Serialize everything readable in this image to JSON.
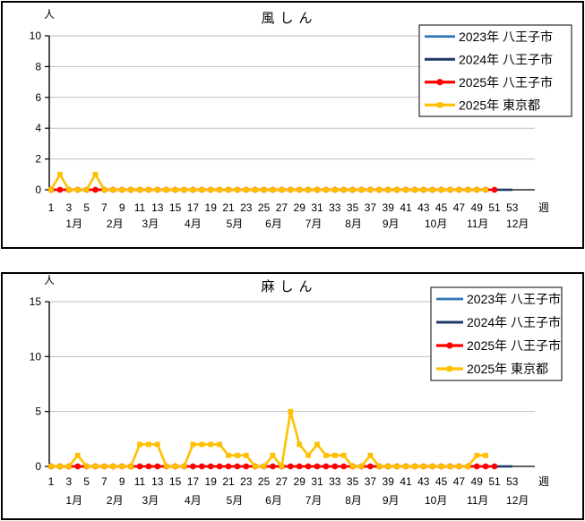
{
  "panels": [
    {
      "title": "風しん",
      "y_axis_label": "人",
      "x_axis_label": "週",
      "chart_data": {
        "type": "line",
        "title": "風しん",
        "ylabel": "人",
        "xlabel": "週",
        "ylim": [
          0,
          10
        ],
        "yticks": [
          0,
          2,
          4,
          6,
          8,
          10
        ],
        "x_ticks": [
          1,
          3,
          5,
          7,
          9,
          11,
          13,
          15,
          17,
          19,
          21,
          23,
          25,
          27,
          29,
          31,
          33,
          35,
          37,
          39,
          41,
          43,
          45,
          47,
          49,
          51,
          53
        ],
        "grid": true,
        "legend_position": "top-right",
        "months": [
          {
            "label": "1月",
            "week": 3.6
          },
          {
            "label": "2月",
            "week": 8.2
          },
          {
            "label": "3月",
            "week": 12.2
          },
          {
            "label": "4月",
            "week": 17.0
          },
          {
            "label": "5月",
            "week": 21.7
          },
          {
            "label": "6月",
            "week": 26.1
          },
          {
            "label": "7月",
            "week": 30.6
          },
          {
            "label": "8月",
            "week": 35.1
          },
          {
            "label": "9月",
            "week": 39.3
          },
          {
            "label": "10月",
            "week": 44.4
          },
          {
            "label": "11月",
            "week": 49.1
          },
          {
            "label": "12月",
            "week": 53.6
          }
        ],
        "series": [
          {
            "name": "2023年  八王子市",
            "color": "#2E75B6",
            "marker": "none",
            "values": [
              0,
              0,
              0,
              0,
              0,
              0,
              0,
              0,
              0,
              0,
              0,
              0,
              0,
              0,
              0,
              0,
              0,
              0,
              0,
              0,
              0,
              0,
              0,
              0,
              0,
              0,
              0,
              0,
              0,
              0,
              0,
              0,
              0,
              0,
              0,
              0,
              0,
              0,
              0,
              0,
              0,
              0,
              0,
              0,
              0,
              0,
              0,
              0,
              0,
              0,
              0,
              0,
              0
            ]
          },
          {
            "name": "2024年  八王子市",
            "color": "#1F3864",
            "marker": "none",
            "values": [
              0,
              0,
              0,
              0,
              0,
              0,
              0,
              0,
              0,
              0,
              0,
              0,
              0,
              0,
              0,
              0,
              0,
              0,
              0,
              0,
              0,
              0,
              0,
              0,
              0,
              0,
              0,
              0,
              0,
              0,
              0,
              0,
              0,
              0,
              0,
              0,
              0,
              0,
              0,
              0,
              0,
              0,
              0,
              0,
              0,
              0,
              0,
              0,
              0,
              0,
              0,
              0,
              0
            ]
          },
          {
            "name": "2025年  八王子市",
            "color": "#FF0000",
            "marker": "circle",
            "values": [
              0,
              0,
              0,
              0,
              0,
              0,
              0,
              0,
              0,
              0,
              0,
              0,
              0,
              0,
              0,
              0,
              0,
              0,
              0,
              0,
              0,
              0,
              0,
              0,
              0,
              0,
              0,
              0,
              0,
              0,
              0,
              0,
              0,
              0,
              0,
              0,
              0,
              0,
              0,
              0,
              0,
              0,
              0,
              0,
              0,
              0,
              0,
              0,
              0,
              0,
              0
            ]
          },
          {
            "name": "2025年  東京都",
            "color": "#FFC000",
            "marker": "square",
            "values": [
              0,
              1,
              0,
              0,
              0,
              1,
              0,
              0,
              0,
              0,
              0,
              0,
              0,
              0,
              0,
              0,
              0,
              0,
              0,
              0,
              0,
              0,
              0,
              0,
              0,
              0,
              0,
              0,
              0,
              0,
              0,
              0,
              0,
              0,
              0,
              0,
              0,
              0,
              0,
              0,
              0,
              0,
              0,
              0,
              0,
              0,
              0,
              0,
              0,
              0
            ]
          }
        ]
      }
    },
    {
      "title": "麻しん",
      "y_axis_label": "人",
      "x_axis_label": "週",
      "chart_data": {
        "type": "line",
        "title": "麻しん",
        "ylabel": "人",
        "xlabel": "週",
        "ylim": [
          0,
          15
        ],
        "yticks": [
          0,
          5,
          10,
          15
        ],
        "x_ticks": [
          1,
          3,
          5,
          7,
          9,
          11,
          13,
          15,
          17,
          19,
          21,
          23,
          25,
          27,
          29,
          31,
          33,
          35,
          37,
          39,
          41,
          43,
          45,
          47,
          49,
          51,
          53
        ],
        "grid": true,
        "legend_position": "top-right",
        "months": [
          {
            "label": "1月",
            "week": 3.6
          },
          {
            "label": "2月",
            "week": 8.2
          },
          {
            "label": "3月",
            "week": 12.2
          },
          {
            "label": "4月",
            "week": 17.0
          },
          {
            "label": "5月",
            "week": 21.7
          },
          {
            "label": "6月",
            "week": 26.1
          },
          {
            "label": "7月",
            "week": 30.6
          },
          {
            "label": "8月",
            "week": 35.1
          },
          {
            "label": "9月",
            "week": 39.3
          },
          {
            "label": "10月",
            "week": 44.4
          },
          {
            "label": "11月",
            "week": 49.1
          },
          {
            "label": "12月",
            "week": 53.6
          }
        ],
        "series": [
          {
            "name": "2023年  八王子市",
            "color": "#2E75B6",
            "marker": "none",
            "values": [
              0,
              0,
              0,
              0,
              0,
              0,
              0,
              0,
              0,
              0,
              0,
              0,
              0,
              0,
              0,
              0,
              0,
              0,
              0,
              0,
              0,
              0,
              0,
              0,
              0,
              0,
              0,
              0,
              0,
              0,
              0,
              0,
              0,
              0,
              0,
              0,
              0,
              0,
              0,
              0,
              0,
              0,
              0,
              0,
              0,
              0,
              0,
              0,
              0,
              0,
              0,
              0,
              0
            ]
          },
          {
            "name": "2024年  八王子市",
            "color": "#1F3864",
            "marker": "none",
            "values": [
              0,
              0,
              0,
              0,
              0,
              0,
              0,
              0,
              0,
              0,
              0,
              0,
              0,
              0,
              0,
              0,
              0,
              0,
              0,
              0,
              0,
              0,
              0,
              0,
              0,
              0,
              0,
              0,
              0,
              0,
              0,
              0,
              0,
              0,
              0,
              0,
              0,
              0,
              0,
              0,
              0,
              0,
              0,
              0,
              0,
              0,
              0,
              0,
              0,
              0,
              0,
              0,
              0
            ]
          },
          {
            "name": "2025年  八王子市",
            "color": "#FF0000",
            "marker": "circle",
            "values": [
              0,
              0,
              0,
              0,
              0,
              0,
              0,
              0,
              0,
              0,
              0,
              0,
              0,
              0,
              0,
              0,
              0,
              0,
              0,
              0,
              0,
              0,
              0,
              0,
              0,
              0,
              0,
              0,
              0,
              0,
              0,
              0,
              0,
              0,
              0,
              0,
              0,
              0,
              0,
              0,
              0,
              0,
              0,
              0,
              0,
              0,
              0,
              0,
              0,
              0,
              0
            ]
          },
          {
            "name": "2025年  東京都",
            "color": "#FFC000",
            "marker": "square",
            "values": [
              0,
              0,
              0,
              1,
              0,
              0,
              0,
              0,
              0,
              0,
              2,
              2,
              2,
              0,
              0,
              0,
              2,
              2,
              2,
              2,
              1,
              1,
              1,
              0,
              0,
              1,
              0,
              5,
              2,
              1,
              2,
              1,
              1,
              1,
              0,
              0,
              1,
              0,
              0,
              0,
              0,
              0,
              0,
              0,
              0,
              0,
              0,
              0,
              1,
              1
            ]
          }
        ]
      }
    }
  ],
  "style": {
    "gridline_color": "#BFBFBF",
    "axis_color": "#000000",
    "legend_border_color": "#000000",
    "legend_background": "#FFFFFF"
  }
}
